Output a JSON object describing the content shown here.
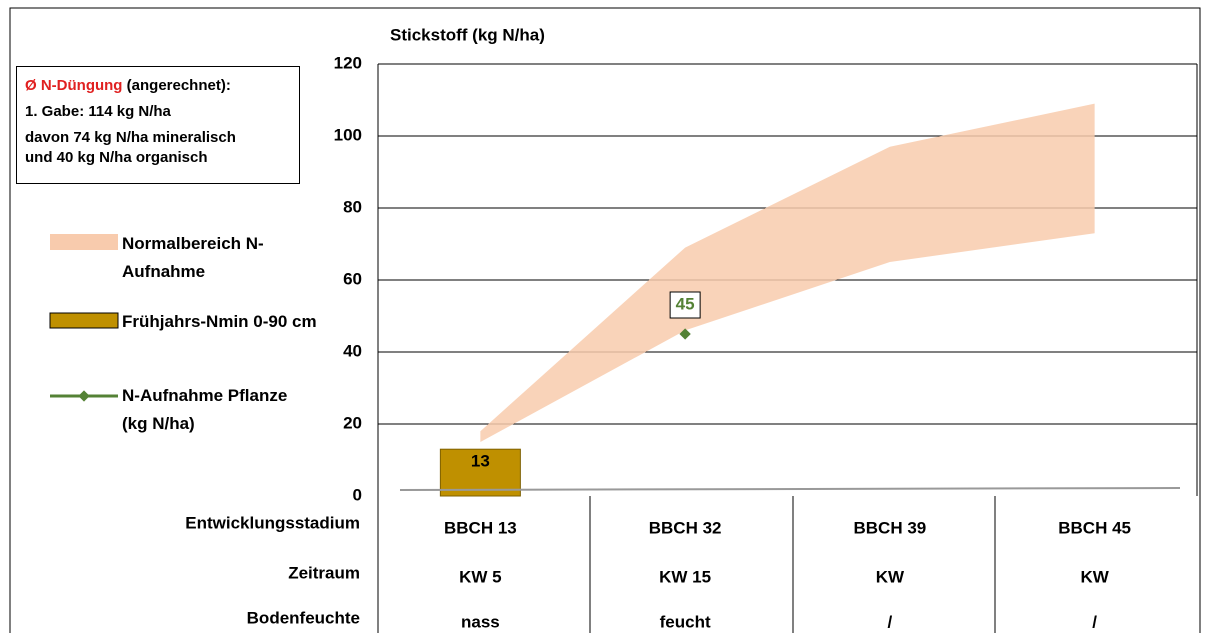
{
  "chart_data": {
    "type": "bar",
    "title": "Stickstoff (kg N/ha)",
    "categories": [
      "BBCH 13",
      "BBCH 32",
      "BBCH 39",
      "BBCH 45"
    ],
    "ylim": [
      0,
      120
    ],
    "yticks": [
      0,
      20,
      40,
      60,
      80,
      100,
      120
    ],
    "grid": true,
    "series": [
      {
        "name": "Normalbereich N-Aufnahme",
        "type": "band",
        "color": "#f8cbad",
        "lower": [
          15,
          46,
          65,
          73
        ],
        "upper": [
          18,
          69,
          97,
          109
        ]
      },
      {
        "name": "Frühjahrs-Nmin 0-90 cm",
        "type": "bar",
        "color": "#bf9000",
        "values": [
          13,
          null,
          null,
          null
        ]
      },
      {
        "name": "N-Aufnahme Pflanze (kg N/ha)",
        "type": "scatter",
        "color": "#548235",
        "values": [
          null,
          45,
          null,
          null
        ]
      }
    ],
    "table": {
      "category_label": "Entwicklungsstadium",
      "rows": [
        {
          "label": "Zeitraum",
          "values": [
            "KW 5",
            "KW 15",
            "KW",
            "KW"
          ]
        },
        {
          "label": "Bodenfeuchte",
          "values": [
            "nass",
            "feucht",
            "/",
            "/"
          ]
        }
      ]
    }
  },
  "info": {
    "highlight": "Ø N-Düngung",
    "rest": "(angerechnet):",
    "lines": [
      "1. Gabe: 114 kg N/ha",
      "davon 74 kg N/ha mineralisch",
      "und 40 kg N/ha organisch"
    ]
  }
}
